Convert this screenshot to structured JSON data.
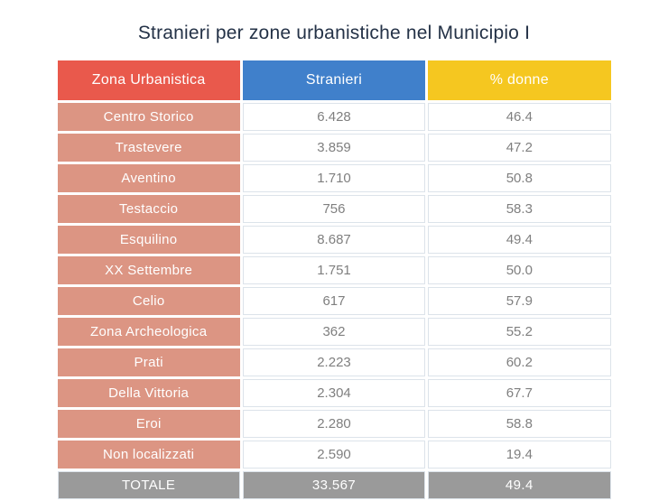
{
  "page": {
    "title": "Stranieri per zone urbanistiche nel Municipio I"
  },
  "colors": {
    "title_text": "#243247",
    "header_zona_bg": "#E9594C",
    "header_stranieri_bg": "#4080CB",
    "header_donne_bg": "#F5C720",
    "row_label_bg": "#DC9583",
    "total_row_bg": "#9A9A9A",
    "value_text": "#7F7F7F",
    "cell_border": "#DCE3EA"
  },
  "chart_data": {
    "type": "table",
    "title": "Stranieri per zone urbanistiche nel Municipio I",
    "columns": [
      "Zona Urbanistica",
      "Stranieri",
      "% donne"
    ],
    "rows": [
      [
        "Centro Storico",
        "6.428",
        "46.4"
      ],
      [
        "Trastevere",
        "3.859",
        "47.2"
      ],
      [
        "Aventino",
        "1.710",
        "50.8"
      ],
      [
        "Testaccio",
        "756",
        "58.3"
      ],
      [
        "Esquilino",
        "8.687",
        "49.4"
      ],
      [
        "XX Settembre",
        "1.751",
        "50.0"
      ],
      [
        "Celio",
        "617",
        "57.9"
      ],
      [
        "Zona Archeologica",
        "362",
        "55.2"
      ],
      [
        "Prati",
        "2.223",
        "60.2"
      ],
      [
        "Della Vittoria",
        "2.304",
        "67.7"
      ],
      [
        "Eroi",
        "2.280",
        "58.8"
      ],
      [
        "Non localizzati",
        "2.590",
        "19.4"
      ]
    ],
    "total_row": [
      "TOTALE",
      "33.567",
      "49.4"
    ]
  }
}
